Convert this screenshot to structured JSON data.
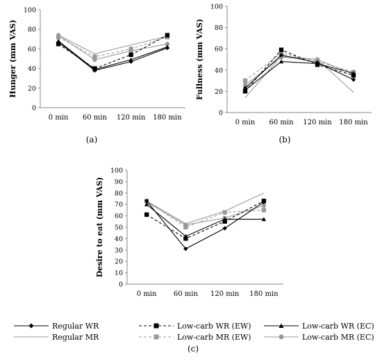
{
  "chart_data": [
    {
      "type": "line",
      "panel_label": "(a)",
      "xlabel": "",
      "ylabel": "Hunger (mm VAS)",
      "categories": [
        "0 min",
        "60 min",
        "120 min",
        "180 min"
      ],
      "ylim": [
        0,
        100
      ],
      "yticks": [
        "0",
        "20",
        "40",
        "60",
        "80",
        "100"
      ],
      "grid": false,
      "series": [
        {
          "name": "Regular WR",
          "values": [
            67,
            38,
            47,
            61
          ]
        },
        {
          "name": "Low-carb WR (EW)",
          "values": [
            65,
            40,
            54,
            74
          ]
        },
        {
          "name": "Low-carb WR (EC)",
          "values": [
            68,
            39,
            49,
            62
          ]
        },
        {
          "name": "Regular MR",
          "values": [
            74,
            55,
            64,
            73
          ]
        },
        {
          "name": "Low-carb MR (EW)",
          "values": [
            72,
            52,
            60,
            72
          ]
        },
        {
          "name": "Low-carb MR (EC)",
          "values": [
            74,
            49,
            58,
            65
          ]
        }
      ]
    },
    {
      "type": "line",
      "panel_label": "(b)",
      "xlabel": "",
      "ylabel": "Fullness (mm VAS)",
      "categories": [
        "0 min",
        "60 min",
        "120 min",
        "180 min"
      ],
      "ylim": [
        0,
        100
      ],
      "yticks": [
        "0",
        "20",
        "40",
        "60",
        "80",
        "100"
      ],
      "grid": false,
      "series": [
        {
          "name": "Regular WR",
          "values": [
            23,
            54,
            47,
            31
          ]
        },
        {
          "name": "Low-carb WR (EW)",
          "values": [
            20,
            59,
            45,
            35
          ]
        },
        {
          "name": "Low-carb WR (EC)",
          "values": [
            21,
            48,
            46,
            37
          ]
        },
        {
          "name": "Regular MR",
          "values": [
            14,
            53,
            50,
            19
          ]
        },
        {
          "name": "Low-carb MR (EW)",
          "values": [
            30,
            56,
            48,
            38
          ]
        },
        {
          "name": "Low-carb MR (EC)",
          "values": [
            26,
            52,
            50,
            36
          ]
        }
      ]
    },
    {
      "type": "line",
      "panel_label": "(c)",
      "xlabel": "",
      "ylabel": "Desire to eat (mm VAS)",
      "categories": [
        "0 min",
        "60 min",
        "120 min",
        "180 min"
      ],
      "ylim": [
        0,
        100
      ],
      "yticks": [
        "0",
        "10",
        "20",
        "30",
        "40",
        "50",
        "60",
        "70",
        "80",
        "90",
        "100"
      ],
      "grid": false,
      "series": [
        {
          "name": "Regular WR",
          "values": [
            73,
            31,
            49,
            72
          ]
        },
        {
          "name": "Low-carb WR (EW)",
          "values": [
            61,
            40,
            55,
            73
          ]
        },
        {
          "name": "Low-carb WR (EC)",
          "values": [
            70,
            42,
            57,
            57
          ]
        },
        {
          "name": "Regular MR",
          "values": [
            73,
            53,
            64,
            80
          ]
        },
        {
          "name": "Low-carb MR (EW)",
          "values": [
            73,
            50,
            63,
            65
          ]
        },
        {
          "name": "Low-carb MR (EC)",
          "values": [
            72,
            52,
            58,
            69
          ]
        }
      ]
    }
  ],
  "legend": {
    "placement": "bottom",
    "items": [
      {
        "label": "Regular WR",
        "color": "#000000",
        "dash": "solid",
        "marker": "diamond"
      },
      {
        "label": "Low-carb WR (EW)",
        "color": "#000000",
        "dash": "dashed",
        "marker": "square"
      },
      {
        "label": "Low-carb WR (EC)",
        "color": "#000000",
        "dash": "solid",
        "marker": "triangle"
      },
      {
        "label": "Regular  MR",
        "color": "#999999",
        "dash": "solid",
        "marker": "none"
      },
      {
        "label": "Low-carb MR (EW)",
        "color": "#999999",
        "dash": "dashed",
        "marker": "square"
      },
      {
        "label": "Low-carb MR (EC)",
        "color": "#999999",
        "dash": "solid",
        "marker": "circle"
      }
    ]
  }
}
